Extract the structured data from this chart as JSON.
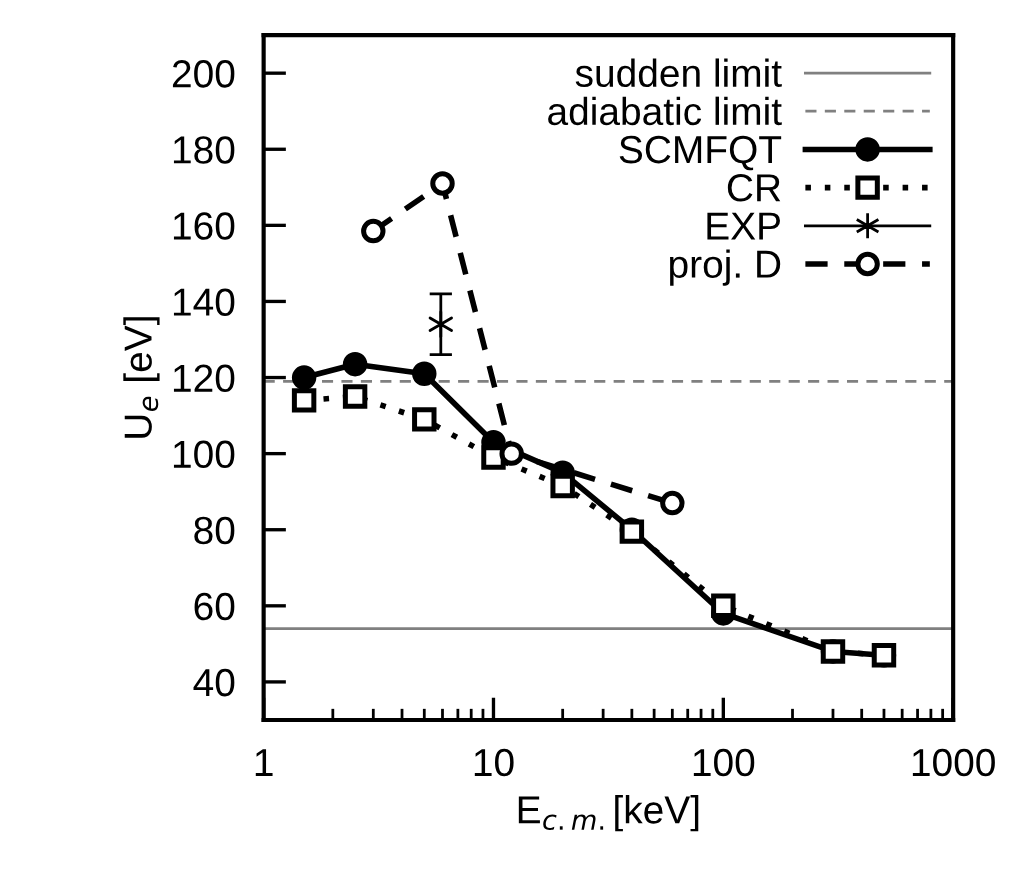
{
  "chart_data": {
    "type": "line",
    "xlabel": "E$_{c.m.}$[keV]",
    "ylabel": "U$_{e}$ [eV]",
    "log": "x",
    "xlim": [
      1,
      1000
    ],
    "xticks": [
      1,
      10,
      100,
      1000
    ],
    "ylim": [
      30,
      210
    ],
    "yticks": [
      40,
      60,
      80,
      100,
      120,
      140,
      160,
      180,
      200
    ],
    "grid": false,
    "legend": "top right",
    "ref_lines": [
      {
        "axis": "y",
        "value": 54,
        "label": "sudden limit",
        "color": "#808080",
        "line_style": "solid"
      },
      {
        "axis": "y",
        "value": 119,
        "label": "adiabatic limit",
        "color": "#808080",
        "line_style": "dashed"
      }
    ],
    "series": [
      {
        "name": "SCMFQT",
        "color": "#000000",
        "marker": "circle",
        "line_style": "solid",
        "x": [
          1.5,
          2.5,
          5,
          10,
          20,
          40,
          100,
          300,
          500
        ],
        "values": [
          120,
          123.5,
          121,
          103,
          95,
          80,
          58,
          48,
          47
        ]
      },
      {
        "name": "CR",
        "color": "#000000",
        "marker": "square",
        "line_style": "dotted",
        "x": [
          1.5,
          2.5,
          5,
          10,
          20,
          40,
          100,
          300,
          500
        ],
        "values": [
          114,
          115,
          109,
          99,
          91.5,
          79.5,
          60,
          48,
          47
        ]
      },
      {
        "name": "EXP",
        "type": "scatter",
        "color": "#000000",
        "marker": "cross",
        "x": [
          5.9
        ],
        "values": [
          134
        ],
        "errors": [
          8
        ]
      },
      {
        "name": "proj. D",
        "color": "#000000",
        "marker": "circle",
        "line_style": "dashed",
        "x": [
          3,
          6,
          12,
          60
        ],
        "values": [
          158.5,
          171,
          100,
          87
        ]
      }
    ]
  }
}
